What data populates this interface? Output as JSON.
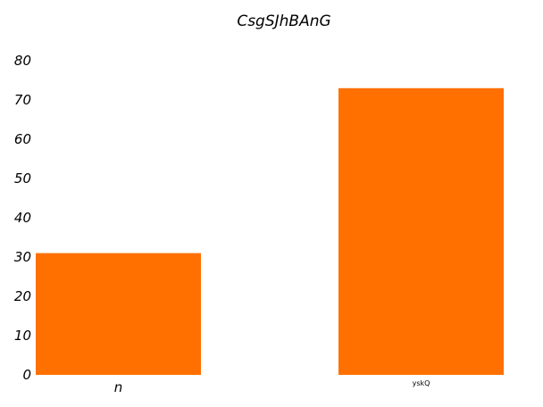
{
  "chart_data": {
    "type": "bar",
    "title": "CsgSJhBAnG",
    "categories": [
      "n",
      "yskQ"
    ],
    "values": [
      31,
      73
    ],
    "series_color": "#ff7000",
    "ylim": [
      0,
      80
    ],
    "yticks": [
      0,
      10,
      20,
      30,
      40,
      50,
      60,
      70,
      80
    ],
    "xlabel": "",
    "ylabel": "",
    "grid": false,
    "legend": "none"
  }
}
